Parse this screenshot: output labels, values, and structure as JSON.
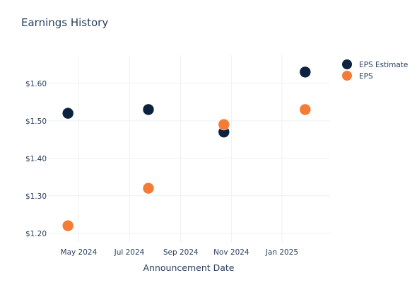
{
  "chart_data": {
    "type": "scatter",
    "title": "Earnings History",
    "xlabel": "Announcement Date",
    "ylabel": "",
    "x_axis_type": "date",
    "xlim": [
      "2024-03-25",
      "2025-02-28"
    ],
    "ylim": [
      1.175,
      1.675
    ],
    "x_ticks": [
      {
        "date": "2024-05-01",
        "label": "May 2024"
      },
      {
        "date": "2024-07-01",
        "label": "Jul 2024"
      },
      {
        "date": "2024-09-01",
        "label": "Sep 2024"
      },
      {
        "date": "2024-11-01",
        "label": "Nov 2024"
      },
      {
        "date": "2025-01-01",
        "label": "Jan 2025"
      }
    ],
    "y_ticks": [
      {
        "value": 1.2,
        "label": "$1.20"
      },
      {
        "value": 1.3,
        "label": "$1.30"
      },
      {
        "value": 1.4,
        "label": "$1.40"
      },
      {
        "value": 1.5,
        "label": "$1.50"
      },
      {
        "value": 1.6,
        "label": "$1.60"
      }
    ],
    "grid": true,
    "legend_position": "top-right",
    "series": [
      {
        "name": "EPS Estimate",
        "color": "#0d2240",
        "points": [
          {
            "x": "2024-04-18",
            "y": 1.52
          },
          {
            "x": "2024-07-24",
            "y": 1.53
          },
          {
            "x": "2024-10-23",
            "y": 1.47
          },
          {
            "x": "2025-01-29",
            "y": 1.63
          }
        ]
      },
      {
        "name": "EPS",
        "color": "#f47c36",
        "points": [
          {
            "x": "2024-04-18",
            "y": 1.22
          },
          {
            "x": "2024-07-24",
            "y": 1.32
          },
          {
            "x": "2024-10-23",
            "y": 1.49
          },
          {
            "x": "2025-01-29",
            "y": 1.53
          }
        ]
      }
    ]
  }
}
